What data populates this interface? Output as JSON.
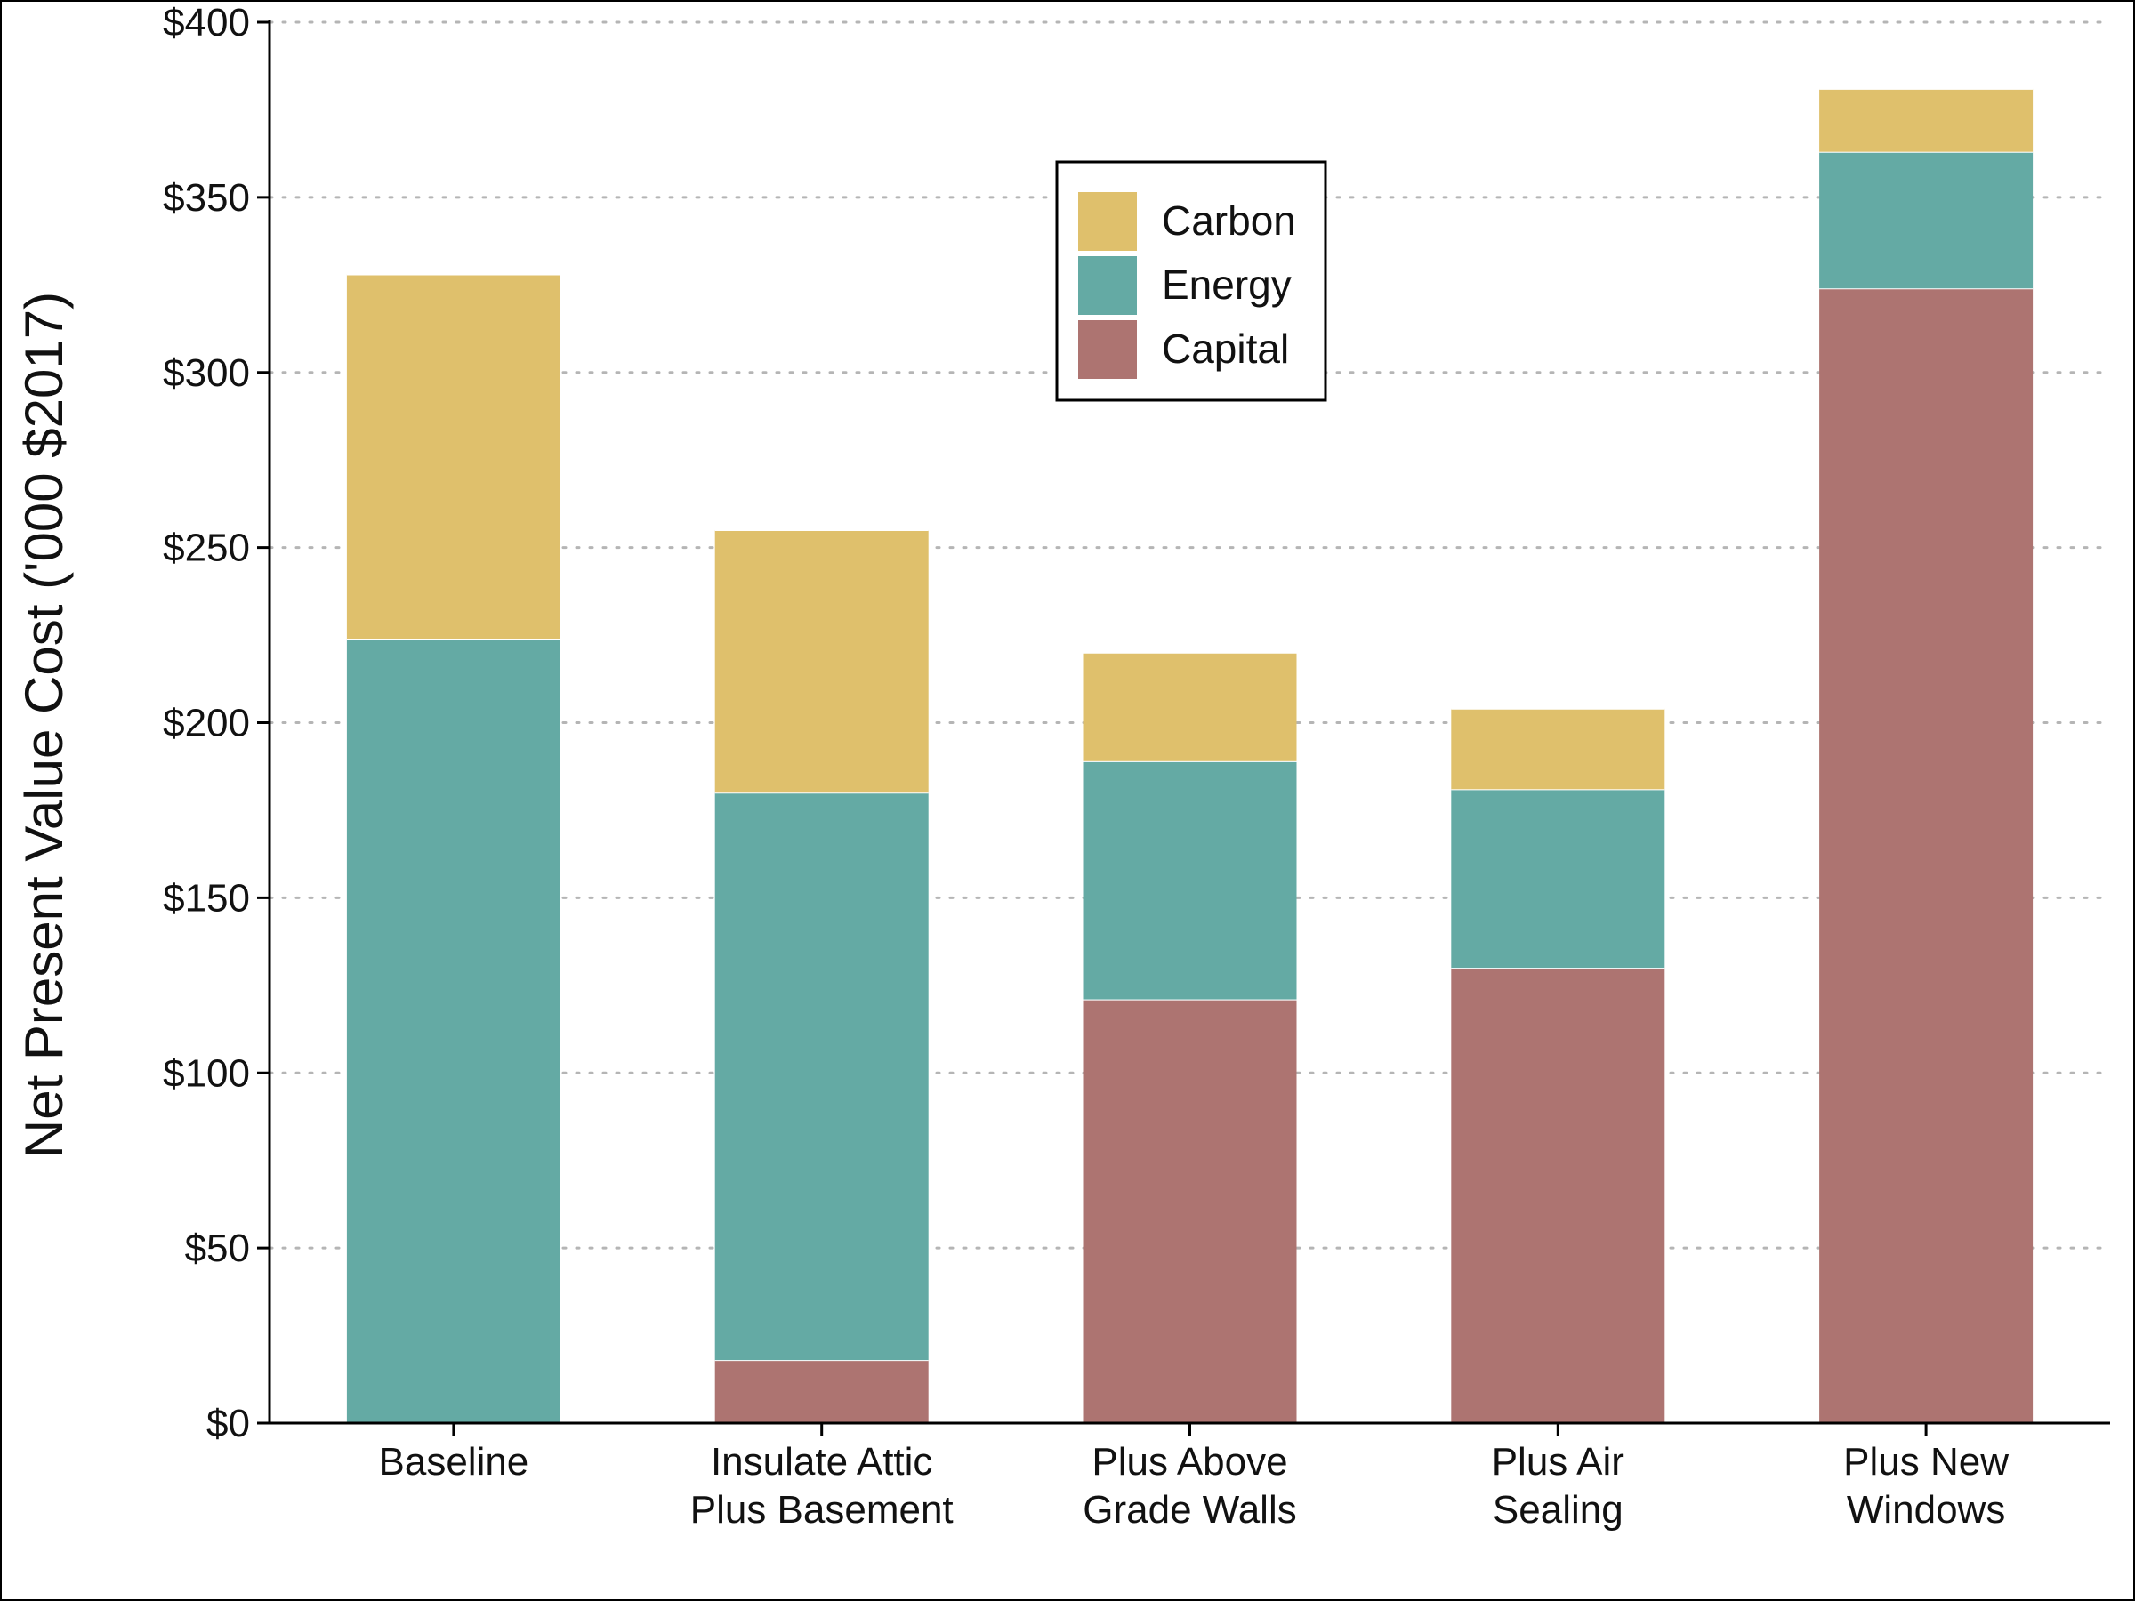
{
  "chart_data": {
    "type": "bar",
    "stacked": true,
    "categories": [
      [
        "Baseline"
      ],
      [
        "Insulate Attic",
        "Plus Basement"
      ],
      [
        "Plus Above",
        "Grade Walls"
      ],
      [
        "Plus Air",
        "Sealing"
      ],
      [
        "Plus New",
        "Windows"
      ]
    ],
    "series": [
      {
        "name": "Capital",
        "color": "#ad7471",
        "values": [
          0,
          18,
          121,
          130,
          324
        ]
      },
      {
        "name": "Energy",
        "color": "#64aaa4",
        "values": [
          224,
          162,
          68,
          51,
          39
        ]
      },
      {
        "name": "Carbon",
        "color": "#dfc06c",
        "values": [
          104,
          75,
          31,
          23,
          18
        ]
      }
    ],
    "legend_order": [
      "Carbon",
      "Energy",
      "Capital"
    ],
    "legend_position": "top-center",
    "ylabel": "Net Present Value Cost ('000 $2017)",
    "xlabel": "",
    "ylim": [
      0,
      400
    ],
    "yticks": [
      0,
      50,
      100,
      150,
      200,
      250,
      300,
      350,
      400
    ],
    "ytick_labels": [
      "$0",
      "$50",
      "$100",
      "$150",
      "$200",
      "$250",
      "$300",
      "$350",
      "$400"
    ],
    "grid": "horizontal-dotted"
  }
}
